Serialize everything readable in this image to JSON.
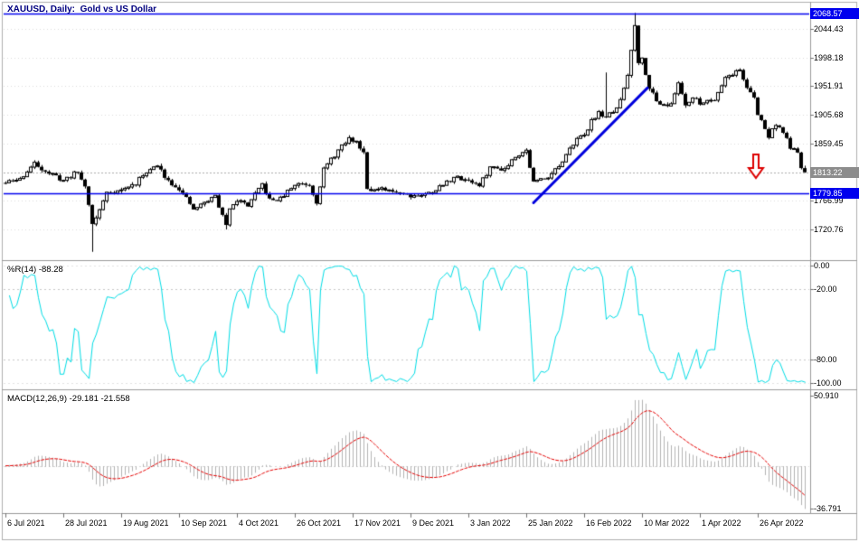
{
  "window": {
    "title_line": "XAUUSD, Daily:  Gold vs US Dollar"
  },
  "colors": {
    "background": "#FFFFFF",
    "border": "#9a9a9a",
    "outer_border": "#b0b0b0",
    "grid": "#dcdcdc",
    "candle_up_fill": "#FFFFFF",
    "candle_down_fill": "#000000",
    "candle_outline": "#000000",
    "level_blue": "#0000EE",
    "trendline_blue": "#0000DD",
    "current_price_line": "#aaaaaa",
    "current_price_bg": "#8c8c8c",
    "wpr_line": "#00DDE6",
    "wpr_levels": "#c8c8c8",
    "macd_histogram": "#b4b4b4",
    "macd_signal": "#e60000",
    "arrow_red": "#dd0000",
    "title_color": "#000080",
    "axis_text": "#000000"
  },
  "chart_data": {
    "type": "candlestick",
    "symbol": "XAUUSD",
    "timeframe": "Daily",
    "description": "Gold vs US Dollar",
    "title": "XAUUSD, Daily:  Gold vs US Dollar",
    "bars": 222,
    "last_close": 1813.22,
    "price_axis": {
      "range": [
        1673,
        2085
      ],
      "grid_values": [
        2044.43,
        1998.18,
        1951.91,
        1905.68,
        1859.45,
        1766.99,
        1720.76
      ],
      "grid_labels": [
        "2044.43",
        "1998.18",
        "1951.91",
        "1905.68",
        "1859.45",
        "1766.99",
        "1720.76"
      ]
    },
    "levels": [
      {
        "value": 2068.57,
        "label": "2068.57",
        "kind": "resistance-hline"
      },
      {
        "value": 1779.85,
        "label": "1779.85",
        "kind": "support-hline"
      }
    ],
    "current_price": {
      "value": 1813.22,
      "label": "1813.22"
    },
    "trendline": {
      "bar1": 146,
      "price1": 1764,
      "bar2": 177.5,
      "price2": 1949
    },
    "arrow": {
      "bar": 207.5,
      "top_price": 1842,
      "tip_price": 1804,
      "direction": "down"
    },
    "x_axis": {
      "tick_bars": [
        0,
        16,
        32,
        48,
        64,
        80,
        96,
        112,
        128,
        144,
        160,
        176,
        192,
        208
      ],
      "tick_labels": [
        "6 Jul 2021",
        "28 Jul 2021",
        "19 Aug 2021",
        "10 Sep 2021",
        "4 Oct 2021",
        "26 Oct 2021",
        "17 Nov 2021",
        "9 Dec 2021",
        "3 Jan 2022",
        "25 Jan 2022",
        "16 Feb 2022",
        "10 Mar 2022",
        "1 Apr 2022",
        "26 Apr 2022"
      ]
    },
    "price_path_anchors": [
      [
        0,
        1796
      ],
      [
        4,
        1802
      ],
      [
        8,
        1827
      ],
      [
        12,
        1812
      ],
      [
        16,
        1800
      ],
      [
        20,
        1814
      ],
      [
        22,
        1790
      ],
      [
        23,
        1763
      ],
      [
        24,
        1729
      ],
      [
        26,
        1752
      ],
      [
        28,
        1781
      ],
      [
        32,
        1784
      ],
      [
        36,
        1795
      ],
      [
        39,
        1815
      ],
      [
        42,
        1823
      ],
      [
        45,
        1800
      ],
      [
        48,
        1787
      ],
      [
        52,
        1753
      ],
      [
        55,
        1764
      ],
      [
        58,
        1775
      ],
      [
        61,
        1726
      ],
      [
        62,
        1757
      ],
      [
        64,
        1769
      ],
      [
        67,
        1760
      ],
      [
        71,
        1793
      ],
      [
        73,
        1768
      ],
      [
        76,
        1770
      ],
      [
        78,
        1782
      ],
      [
        80,
        1793
      ],
      [
        82,
        1796
      ],
      [
        84,
        1793
      ],
      [
        86,
        1766
      ],
      [
        88,
        1818
      ],
      [
        92,
        1848
      ],
      [
        95,
        1867
      ],
      [
        97,
        1862
      ],
      [
        99,
        1846
      ],
      [
        100,
        1789
      ],
      [
        102,
        1784
      ],
      [
        104,
        1785
      ],
      [
        106,
        1782
      ],
      [
        108,
        1783
      ],
      [
        112,
        1776
      ],
      [
        116,
        1777
      ],
      [
        120,
        1789
      ],
      [
        124,
        1805
      ],
      [
        128,
        1801
      ],
      [
        131,
        1791
      ],
      [
        134,
        1821
      ],
      [
        138,
        1819
      ],
      [
        141,
        1840
      ],
      [
        144,
        1848
      ],
      [
        146,
        1797
      ],
      [
        150,
        1807
      ],
      [
        154,
        1828
      ],
      [
        158,
        1871
      ],
      [
        160,
        1870
      ],
      [
        162,
        1898
      ],
      [
        164,
        1908
      ],
      [
        166,
        1903
      ],
      [
        168,
        1909
      ],
      [
        170,
        1928
      ],
      [
        172,
        1970
      ],
      [
        174,
        2052
      ],
      [
        175,
        1991
      ],
      [
        176,
        1996
      ],
      [
        178,
        1951
      ],
      [
        180,
        1927
      ],
      [
        184,
        1921
      ],
      [
        186,
        1958
      ],
      [
        188,
        1923
      ],
      [
        190,
        1933
      ],
      [
        192,
        1925
      ],
      [
        196,
        1932
      ],
      [
        199,
        1966
      ],
      [
        203,
        1978
      ],
      [
        205,
        1950
      ],
      [
        207,
        1932
      ],
      [
        208,
        1905
      ],
      [
        209,
        1897
      ],
      [
        211,
        1870
      ],
      [
        213,
        1892
      ],
      [
        215,
        1877
      ],
      [
        217,
        1854
      ],
      [
        219,
        1842
      ],
      [
        220,
        1822
      ],
      [
        221,
        1813.22
      ]
    ],
    "wick_overrides": {
      "24": {
        "low": 1685
      },
      "61": {
        "low": 1721
      },
      "166": {
        "high": 1974
      },
      "174": {
        "high": 2070
      }
    },
    "generation": {
      "seed": 11,
      "close_noise": 3.5,
      "wick": 4
    },
    "indicators": [
      {
        "name": "Williams %R",
        "label": "%R(14) -88.28",
        "period": 14,
        "current": -88.28,
        "range": [
          0,
          -100
        ],
        "levels": [
          0,
          -20,
          -80,
          -100
        ],
        "level_labels": [
          "0.00",
          "-20.00",
          "-80.00",
          "-100.00"
        ],
        "computed_from": "candles"
      },
      {
        "name": "MACD",
        "label": "MACD(12,26,9) -29.181 -21.558",
        "fast": 12,
        "slow": 26,
        "signal": 9,
        "current_macd": -29.181,
        "current_signal": -21.558,
        "max_label": "50.910",
        "min_label": "-36.791",
        "scale_max": 50.91,
        "scale_min": -36.791,
        "computed_from": "candles"
      }
    ]
  }
}
